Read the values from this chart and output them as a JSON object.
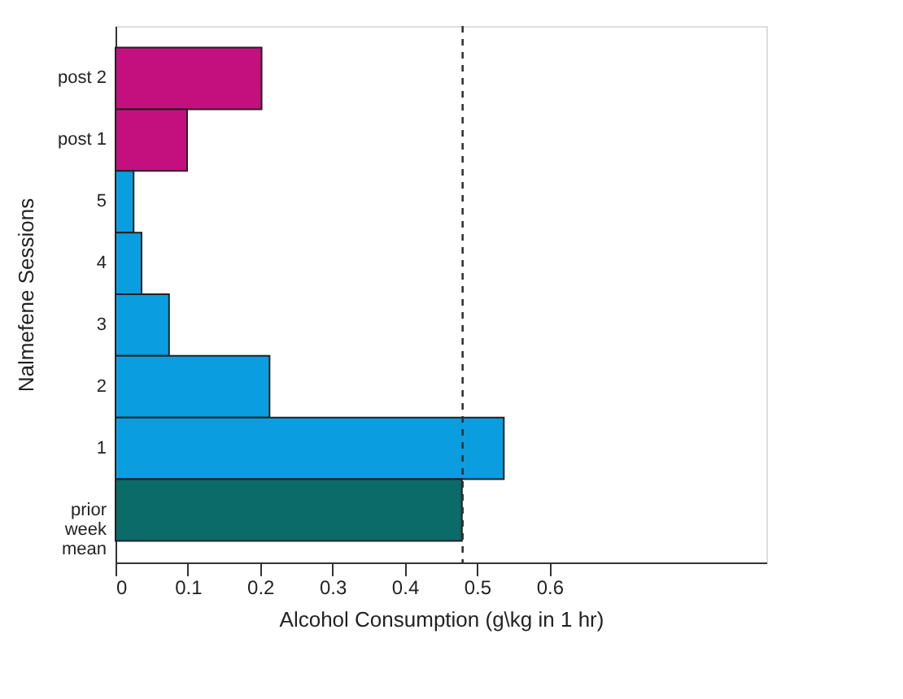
{
  "chart_data": {
    "type": "bar",
    "orientation": "horizontal",
    "xlabel": "Alcohol Consumption (g\\kg in 1 hr)",
    "ylabel": "Nalmefene Sessions",
    "categories": [
      "post 2",
      "post 1",
      "5",
      "4",
      "3",
      "2",
      "1",
      "prior week mean"
    ],
    "values": [
      0.202,
      0.099,
      0.025,
      0.036,
      0.074,
      0.213,
      0.537,
      0.479
    ],
    "colors": [
      "#c4107e",
      "#c4107e",
      "#0a9ee0",
      "#0a9ee0",
      "#0a9ee0",
      "#0a9ee0",
      "#0a9ee0",
      "#0a6b68"
    ],
    "xlim": [
      0,
      0.9
    ],
    "xticks": [
      0,
      0.1,
      0.2,
      0.3,
      0.4,
      0.5,
      0.6
    ],
    "grid": false,
    "ref_lines": [
      {
        "axis": "x",
        "value": 0.48,
        "line_style": "dashed",
        "color": "#333333"
      }
    ]
  }
}
